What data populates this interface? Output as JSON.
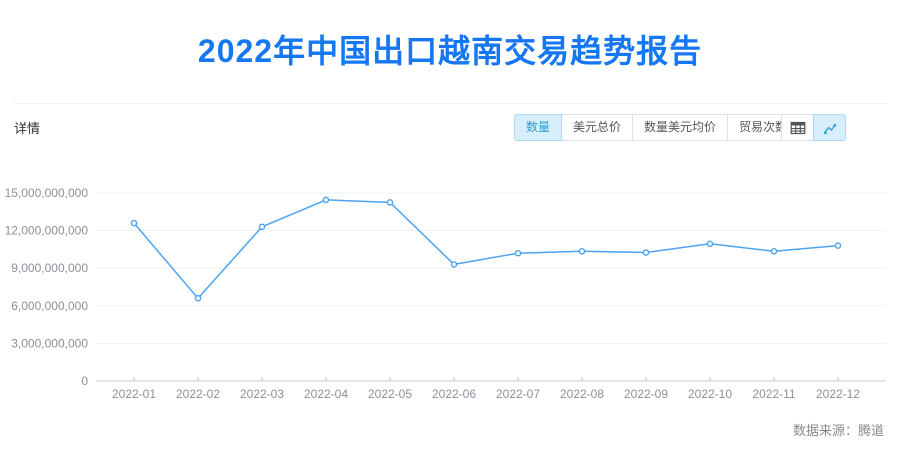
{
  "page": {
    "title": "2022年中国出口越南交易趋势报告",
    "source_label": "数据来源：腾道"
  },
  "toolbar": {
    "detail_label": "详情",
    "metric_buttons": [
      {
        "label": "数量",
        "selected": true
      },
      {
        "label": "美元总价",
        "selected": false
      },
      {
        "label": "数量美元均价",
        "selected": false
      },
      {
        "label": "贸易次数",
        "selected": false
      }
    ],
    "view_buttons": [
      {
        "icon": "table-icon",
        "selected": false
      },
      {
        "icon": "line-chart-icon",
        "selected": true
      }
    ]
  },
  "colors": {
    "title": "#1677f3",
    "line": "#4da3f1",
    "marker_fill": "#ffffff",
    "grid": "#eef1f6",
    "axis": "#cccccc",
    "tick": "#bbbbbb",
    "axis_label": "#8b909a",
    "selected_bg": "#d8eefb",
    "selected_border": "#aed9f2",
    "selected_text": "#2b9dd9"
  },
  "chart_data": {
    "type": "line",
    "title": "",
    "xlabel": "",
    "ylabel": "",
    "legend": "none",
    "grid": true,
    "categories": [
      "2022-01",
      "2022-02",
      "2022-03",
      "2022-04",
      "2022-05",
      "2022-06",
      "2022-07",
      "2022-08",
      "2022-09",
      "2022-10",
      "2022-11",
      "2022-12"
    ],
    "values": [
      12600000000,
      6600000000,
      12300000000,
      14450000000,
      14250000000,
      9300000000,
      10200000000,
      10350000000,
      10250000000,
      10950000000,
      10350000000,
      10800000000
    ],
    "ylim": [
      0,
      15000000000
    ],
    "yticks": [
      0,
      3000000000,
      6000000000,
      9000000000,
      12000000000,
      15000000000
    ]
  }
}
